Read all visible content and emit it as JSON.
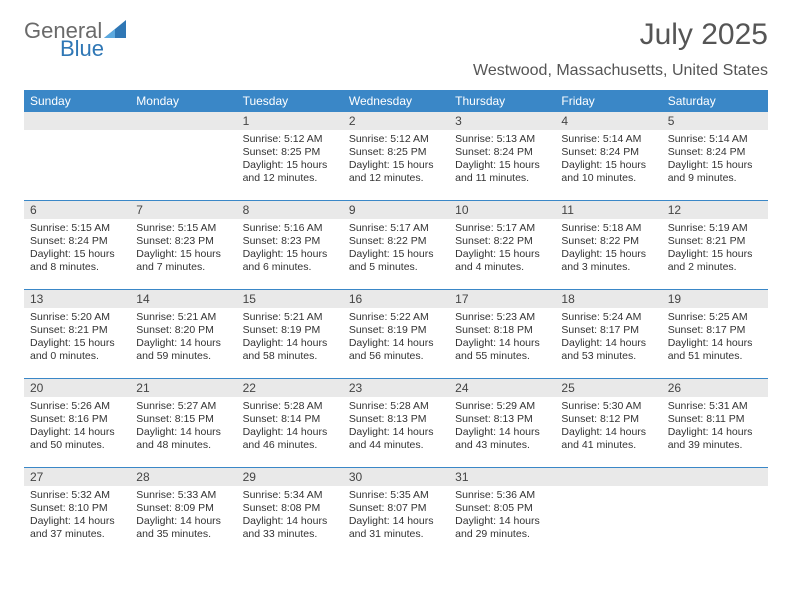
{
  "brand": {
    "name_a": "General",
    "name_b": "Blue",
    "triangle_color": "#2f77b5"
  },
  "title": "July 2025",
  "location": "Westwood, Massachusetts, United States",
  "colors": {
    "header_bar": "#3a87c7",
    "header_bar_text": "#ffffff",
    "daynum_bg": "#e9e9e9",
    "week_divider": "#3a87c7",
    "page_bg": "#ffffff",
    "text": "#333333",
    "title_text": "#555555"
  },
  "weekdays": [
    "Sunday",
    "Monday",
    "Tuesday",
    "Wednesday",
    "Thursday",
    "Friday",
    "Saturday"
  ],
  "weeks": [
    [
      {
        "num": "",
        "lines": []
      },
      {
        "num": "",
        "lines": []
      },
      {
        "num": "1",
        "lines": [
          "Sunrise: 5:12 AM",
          "Sunset: 8:25 PM",
          "Daylight: 15 hours",
          "and 12 minutes."
        ]
      },
      {
        "num": "2",
        "lines": [
          "Sunrise: 5:12 AM",
          "Sunset: 8:25 PM",
          "Daylight: 15 hours",
          "and 12 minutes."
        ]
      },
      {
        "num": "3",
        "lines": [
          "Sunrise: 5:13 AM",
          "Sunset: 8:24 PM",
          "Daylight: 15 hours",
          "and 11 minutes."
        ]
      },
      {
        "num": "4",
        "lines": [
          "Sunrise: 5:14 AM",
          "Sunset: 8:24 PM",
          "Daylight: 15 hours",
          "and 10 minutes."
        ]
      },
      {
        "num": "5",
        "lines": [
          "Sunrise: 5:14 AM",
          "Sunset: 8:24 PM",
          "Daylight: 15 hours",
          "and 9 minutes."
        ]
      }
    ],
    [
      {
        "num": "6",
        "lines": [
          "Sunrise: 5:15 AM",
          "Sunset: 8:24 PM",
          "Daylight: 15 hours",
          "and 8 minutes."
        ]
      },
      {
        "num": "7",
        "lines": [
          "Sunrise: 5:15 AM",
          "Sunset: 8:23 PM",
          "Daylight: 15 hours",
          "and 7 minutes."
        ]
      },
      {
        "num": "8",
        "lines": [
          "Sunrise: 5:16 AM",
          "Sunset: 8:23 PM",
          "Daylight: 15 hours",
          "and 6 minutes."
        ]
      },
      {
        "num": "9",
        "lines": [
          "Sunrise: 5:17 AM",
          "Sunset: 8:22 PM",
          "Daylight: 15 hours",
          "and 5 minutes."
        ]
      },
      {
        "num": "10",
        "lines": [
          "Sunrise: 5:17 AM",
          "Sunset: 8:22 PM",
          "Daylight: 15 hours",
          "and 4 minutes."
        ]
      },
      {
        "num": "11",
        "lines": [
          "Sunrise: 5:18 AM",
          "Sunset: 8:22 PM",
          "Daylight: 15 hours",
          "and 3 minutes."
        ]
      },
      {
        "num": "12",
        "lines": [
          "Sunrise: 5:19 AM",
          "Sunset: 8:21 PM",
          "Daylight: 15 hours",
          "and 2 minutes."
        ]
      }
    ],
    [
      {
        "num": "13",
        "lines": [
          "Sunrise: 5:20 AM",
          "Sunset: 8:21 PM",
          "Daylight: 15 hours",
          "and 0 minutes."
        ]
      },
      {
        "num": "14",
        "lines": [
          "Sunrise: 5:21 AM",
          "Sunset: 8:20 PM",
          "Daylight: 14 hours",
          "and 59 minutes."
        ]
      },
      {
        "num": "15",
        "lines": [
          "Sunrise: 5:21 AM",
          "Sunset: 8:19 PM",
          "Daylight: 14 hours",
          "and 58 minutes."
        ]
      },
      {
        "num": "16",
        "lines": [
          "Sunrise: 5:22 AM",
          "Sunset: 8:19 PM",
          "Daylight: 14 hours",
          "and 56 minutes."
        ]
      },
      {
        "num": "17",
        "lines": [
          "Sunrise: 5:23 AM",
          "Sunset: 8:18 PM",
          "Daylight: 14 hours",
          "and 55 minutes."
        ]
      },
      {
        "num": "18",
        "lines": [
          "Sunrise: 5:24 AM",
          "Sunset: 8:17 PM",
          "Daylight: 14 hours",
          "and 53 minutes."
        ]
      },
      {
        "num": "19",
        "lines": [
          "Sunrise: 5:25 AM",
          "Sunset: 8:17 PM",
          "Daylight: 14 hours",
          "and 51 minutes."
        ]
      }
    ],
    [
      {
        "num": "20",
        "lines": [
          "Sunrise: 5:26 AM",
          "Sunset: 8:16 PM",
          "Daylight: 14 hours",
          "and 50 minutes."
        ]
      },
      {
        "num": "21",
        "lines": [
          "Sunrise: 5:27 AM",
          "Sunset: 8:15 PM",
          "Daylight: 14 hours",
          "and 48 minutes."
        ]
      },
      {
        "num": "22",
        "lines": [
          "Sunrise: 5:28 AM",
          "Sunset: 8:14 PM",
          "Daylight: 14 hours",
          "and 46 minutes."
        ]
      },
      {
        "num": "23",
        "lines": [
          "Sunrise: 5:28 AM",
          "Sunset: 8:13 PM",
          "Daylight: 14 hours",
          "and 44 minutes."
        ]
      },
      {
        "num": "24",
        "lines": [
          "Sunrise: 5:29 AM",
          "Sunset: 8:13 PM",
          "Daylight: 14 hours",
          "and 43 minutes."
        ]
      },
      {
        "num": "25",
        "lines": [
          "Sunrise: 5:30 AM",
          "Sunset: 8:12 PM",
          "Daylight: 14 hours",
          "and 41 minutes."
        ]
      },
      {
        "num": "26",
        "lines": [
          "Sunrise: 5:31 AM",
          "Sunset: 8:11 PM",
          "Daylight: 14 hours",
          "and 39 minutes."
        ]
      }
    ],
    [
      {
        "num": "27",
        "lines": [
          "Sunrise: 5:32 AM",
          "Sunset: 8:10 PM",
          "Daylight: 14 hours",
          "and 37 minutes."
        ]
      },
      {
        "num": "28",
        "lines": [
          "Sunrise: 5:33 AM",
          "Sunset: 8:09 PM",
          "Daylight: 14 hours",
          "and 35 minutes."
        ]
      },
      {
        "num": "29",
        "lines": [
          "Sunrise: 5:34 AM",
          "Sunset: 8:08 PM",
          "Daylight: 14 hours",
          "and 33 minutes."
        ]
      },
      {
        "num": "30",
        "lines": [
          "Sunrise: 5:35 AM",
          "Sunset: 8:07 PM",
          "Daylight: 14 hours",
          "and 31 minutes."
        ]
      },
      {
        "num": "31",
        "lines": [
          "Sunrise: 5:36 AM",
          "Sunset: 8:05 PM",
          "Daylight: 14 hours",
          "and 29 minutes."
        ]
      },
      {
        "num": "",
        "lines": []
      },
      {
        "num": "",
        "lines": []
      }
    ]
  ]
}
